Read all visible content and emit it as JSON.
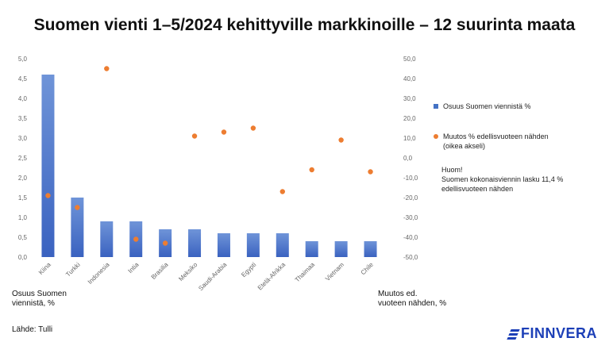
{
  "title": "Suomen vienti 1–5/2024 kehittyville markkinoille – 12 suurinta maata",
  "chart_data": {
    "type": "bar",
    "categories": [
      "Kiina",
      "Turkki",
      "Indonesia",
      "Intia",
      "Brasilia",
      "Meksiko",
      "Saudi-Arabia",
      "Egypti",
      "Etelä-Afrikka",
      "Thaimaa",
      "Vietnam",
      "Chile"
    ],
    "series": [
      {
        "name": "Osuus Suomen viennistä %",
        "type": "bar",
        "axis": "left",
        "color": "#4472c4",
        "values": [
          4.6,
          1.5,
          0.9,
          0.9,
          0.7,
          0.7,
          0.6,
          0.6,
          0.6,
          0.4,
          0.4,
          0.4
        ]
      },
      {
        "name": "Muutos % edellisvuoteen nähden (oikea akseli)",
        "type": "scatter",
        "axis": "right",
        "color": "#ed7d31",
        "values": [
          -19,
          -25,
          45,
          -41,
          -43,
          11,
          13,
          15,
          -17,
          -6,
          9,
          -7
        ]
      }
    ],
    "y_left": {
      "min": 0,
      "max": 5,
      "step": 0.5,
      "tick_labels": [
        "0,0",
        "0,5",
        "1,0",
        "1,5",
        "2,0",
        "2,5",
        "3,0",
        "3,5",
        "4,0",
        "4,5",
        "5,0"
      ]
    },
    "y_right": {
      "min": -50,
      "max": 50,
      "step": 10,
      "tick_labels": [
        "-50,0",
        "-40,0",
        "-30,0",
        "-20,0",
        "-10,0",
        "0,0",
        "10,0",
        "20,0",
        "30,0",
        "40,0",
        "50,0"
      ]
    },
    "ylabel_left": "Osuus Suomen viennistä, %",
    "ylabel_right": "Muutos ed. vuoteen nähden, %",
    "grid": false,
    "legend_position": "right"
  },
  "legend": {
    "bar_label": "Osuus Suomen viennistä %",
    "dot_label_line1": "Muutos % edellisvuoteen nähden",
    "dot_label_line2": "(oikea akseli)"
  },
  "note": {
    "line1": "Huom!",
    "line2": "Suomen kokonaisviennin lasku 11,4 %",
    "line3": "edellisvuoteen nähden"
  },
  "axis_titles": {
    "left_line1": "Osuus Suomen",
    "left_line2": "viennistä, %",
    "right_line1": "Muutos ed.",
    "right_line2": "vuoteen nähden, %"
  },
  "source": "Lähde: Tulli",
  "logo_text": "FINNVERA"
}
